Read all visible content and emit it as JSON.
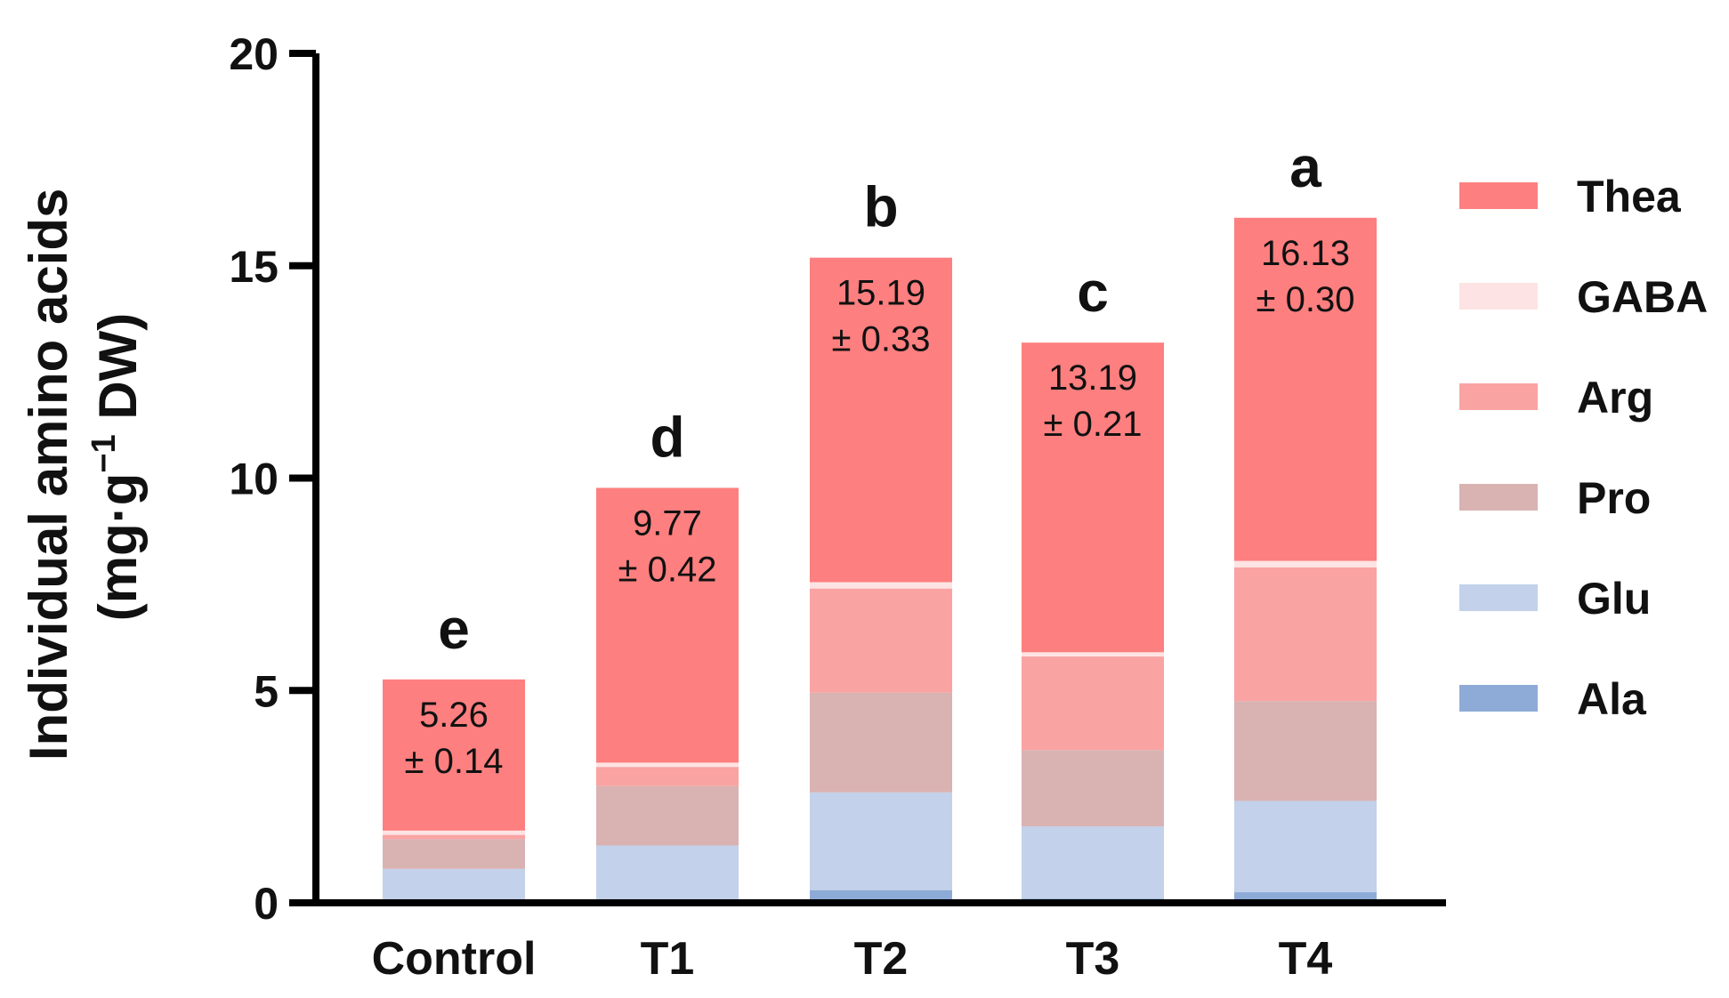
{
  "chart_data": {
    "type": "bar",
    "stacked": true,
    "title": "",
    "xlabel": "",
    "ylabel": {
      "line1": "Individual amino acids",
      "line2_prefix": "(mg·g",
      "line2_sup": "−1",
      "line2_suffix": " DW)"
    },
    "ylim": [
      0,
      20
    ],
    "yticks": [
      0,
      5,
      10,
      15,
      20
    ],
    "categories": [
      "Control",
      "T1",
      "T2",
      "T3",
      "T4"
    ],
    "series": [
      {
        "name": "Ala",
        "color": "#8eaad6",
        "values": [
          0.05,
          0.05,
          0.3,
          0.1,
          0.25
        ]
      },
      {
        "name": "Glu",
        "color": "#c3d1ea",
        "values": [
          0.75,
          1.3,
          2.3,
          1.7,
          2.15
        ]
      },
      {
        "name": "Pro",
        "color": "#d9b2b2",
        "values": [
          0.7,
          1.4,
          2.35,
          1.8,
          2.35
        ]
      },
      {
        "name": "Arg",
        "color": "#f9a3a3",
        "values": [
          0.1,
          0.45,
          2.45,
          2.2,
          3.15
        ]
      },
      {
        "name": "GABA",
        "color": "#fde3e3",
        "values": [
          0.1,
          0.1,
          0.15,
          0.1,
          0.15
        ]
      },
      {
        "name": "Thea",
        "color": "#fd7f7f",
        "values": [
          3.56,
          6.47,
          7.64,
          7.29,
          8.08
        ]
      }
    ],
    "legend_order": [
      "Thea",
      "GABA",
      "Arg",
      "Pro",
      "Glu",
      "Ala"
    ],
    "legend_position": "right",
    "totals": [
      {
        "value": "5.26",
        "sd": "± 0.14"
      },
      {
        "value": "9.77",
        "sd": "± 0.42"
      },
      {
        "value": "15.19",
        "sd": "± 0.33"
      },
      {
        "value": "13.19",
        "sd": "± 0.21"
      },
      {
        "value": "16.13",
        "sd": "± 0.30"
      }
    ],
    "significance_letters": [
      "e",
      "d",
      "b",
      "c",
      "a"
    ]
  }
}
